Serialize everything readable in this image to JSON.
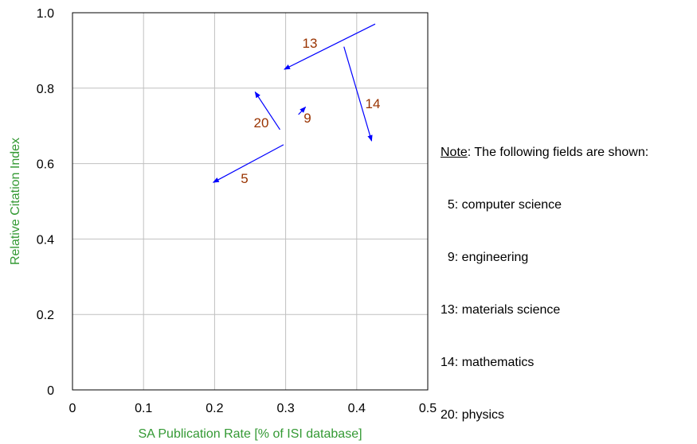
{
  "chart_data": {
    "type": "scatter",
    "xlabel": "SA Publication Rate [% of ISI database]",
    "ylabel": "Relative Citation Index",
    "xlim": [
      0,
      0.5
    ],
    "ylim": [
      0,
      1.0
    ],
    "x_ticks": [
      "0",
      "0.1",
      "0.2",
      "0.3",
      "0.4",
      "0.5"
    ],
    "x_tick_values": [
      0,
      0.1,
      0.2,
      0.3,
      0.4,
      0.5
    ],
    "y_ticks": [
      "0",
      "0.2",
      "0.4",
      "0.6",
      "0.8",
      "1.0"
    ],
    "y_tick_values": [
      0,
      0.2,
      0.4,
      0.6,
      0.8,
      1.0
    ],
    "grid": true,
    "arrows": [
      {
        "label": "5",
        "from": [
          0.297,
          0.65
        ],
        "to": [
          0.198,
          0.55
        ]
      },
      {
        "label": "9",
        "from": [
          0.318,
          0.73
        ],
        "to": [
          0.328,
          0.75
        ]
      },
      {
        "label": "13",
        "from": [
          0.426,
          0.97
        ],
        "to": [
          0.298,
          0.85
        ]
      },
      {
        "label": "14",
        "from": [
          0.382,
          0.91
        ],
        "to": [
          0.421,
          0.66
        ]
      },
      {
        "label": "20",
        "from": [
          0.292,
          0.69
        ],
        "to": [
          0.257,
          0.79
        ]
      }
    ],
    "colors": {
      "arrow": "#0000ff",
      "label": "#993300",
      "axis_title": "#339933",
      "grid": "#c0c0c0"
    }
  },
  "note": {
    "head": "Note",
    "intro": ": The following fields are shown:",
    "entries": [
      "  5: computer science",
      "  9: engineering",
      "13: materials science",
      "14: mathematics",
      "20: physics"
    ]
  }
}
